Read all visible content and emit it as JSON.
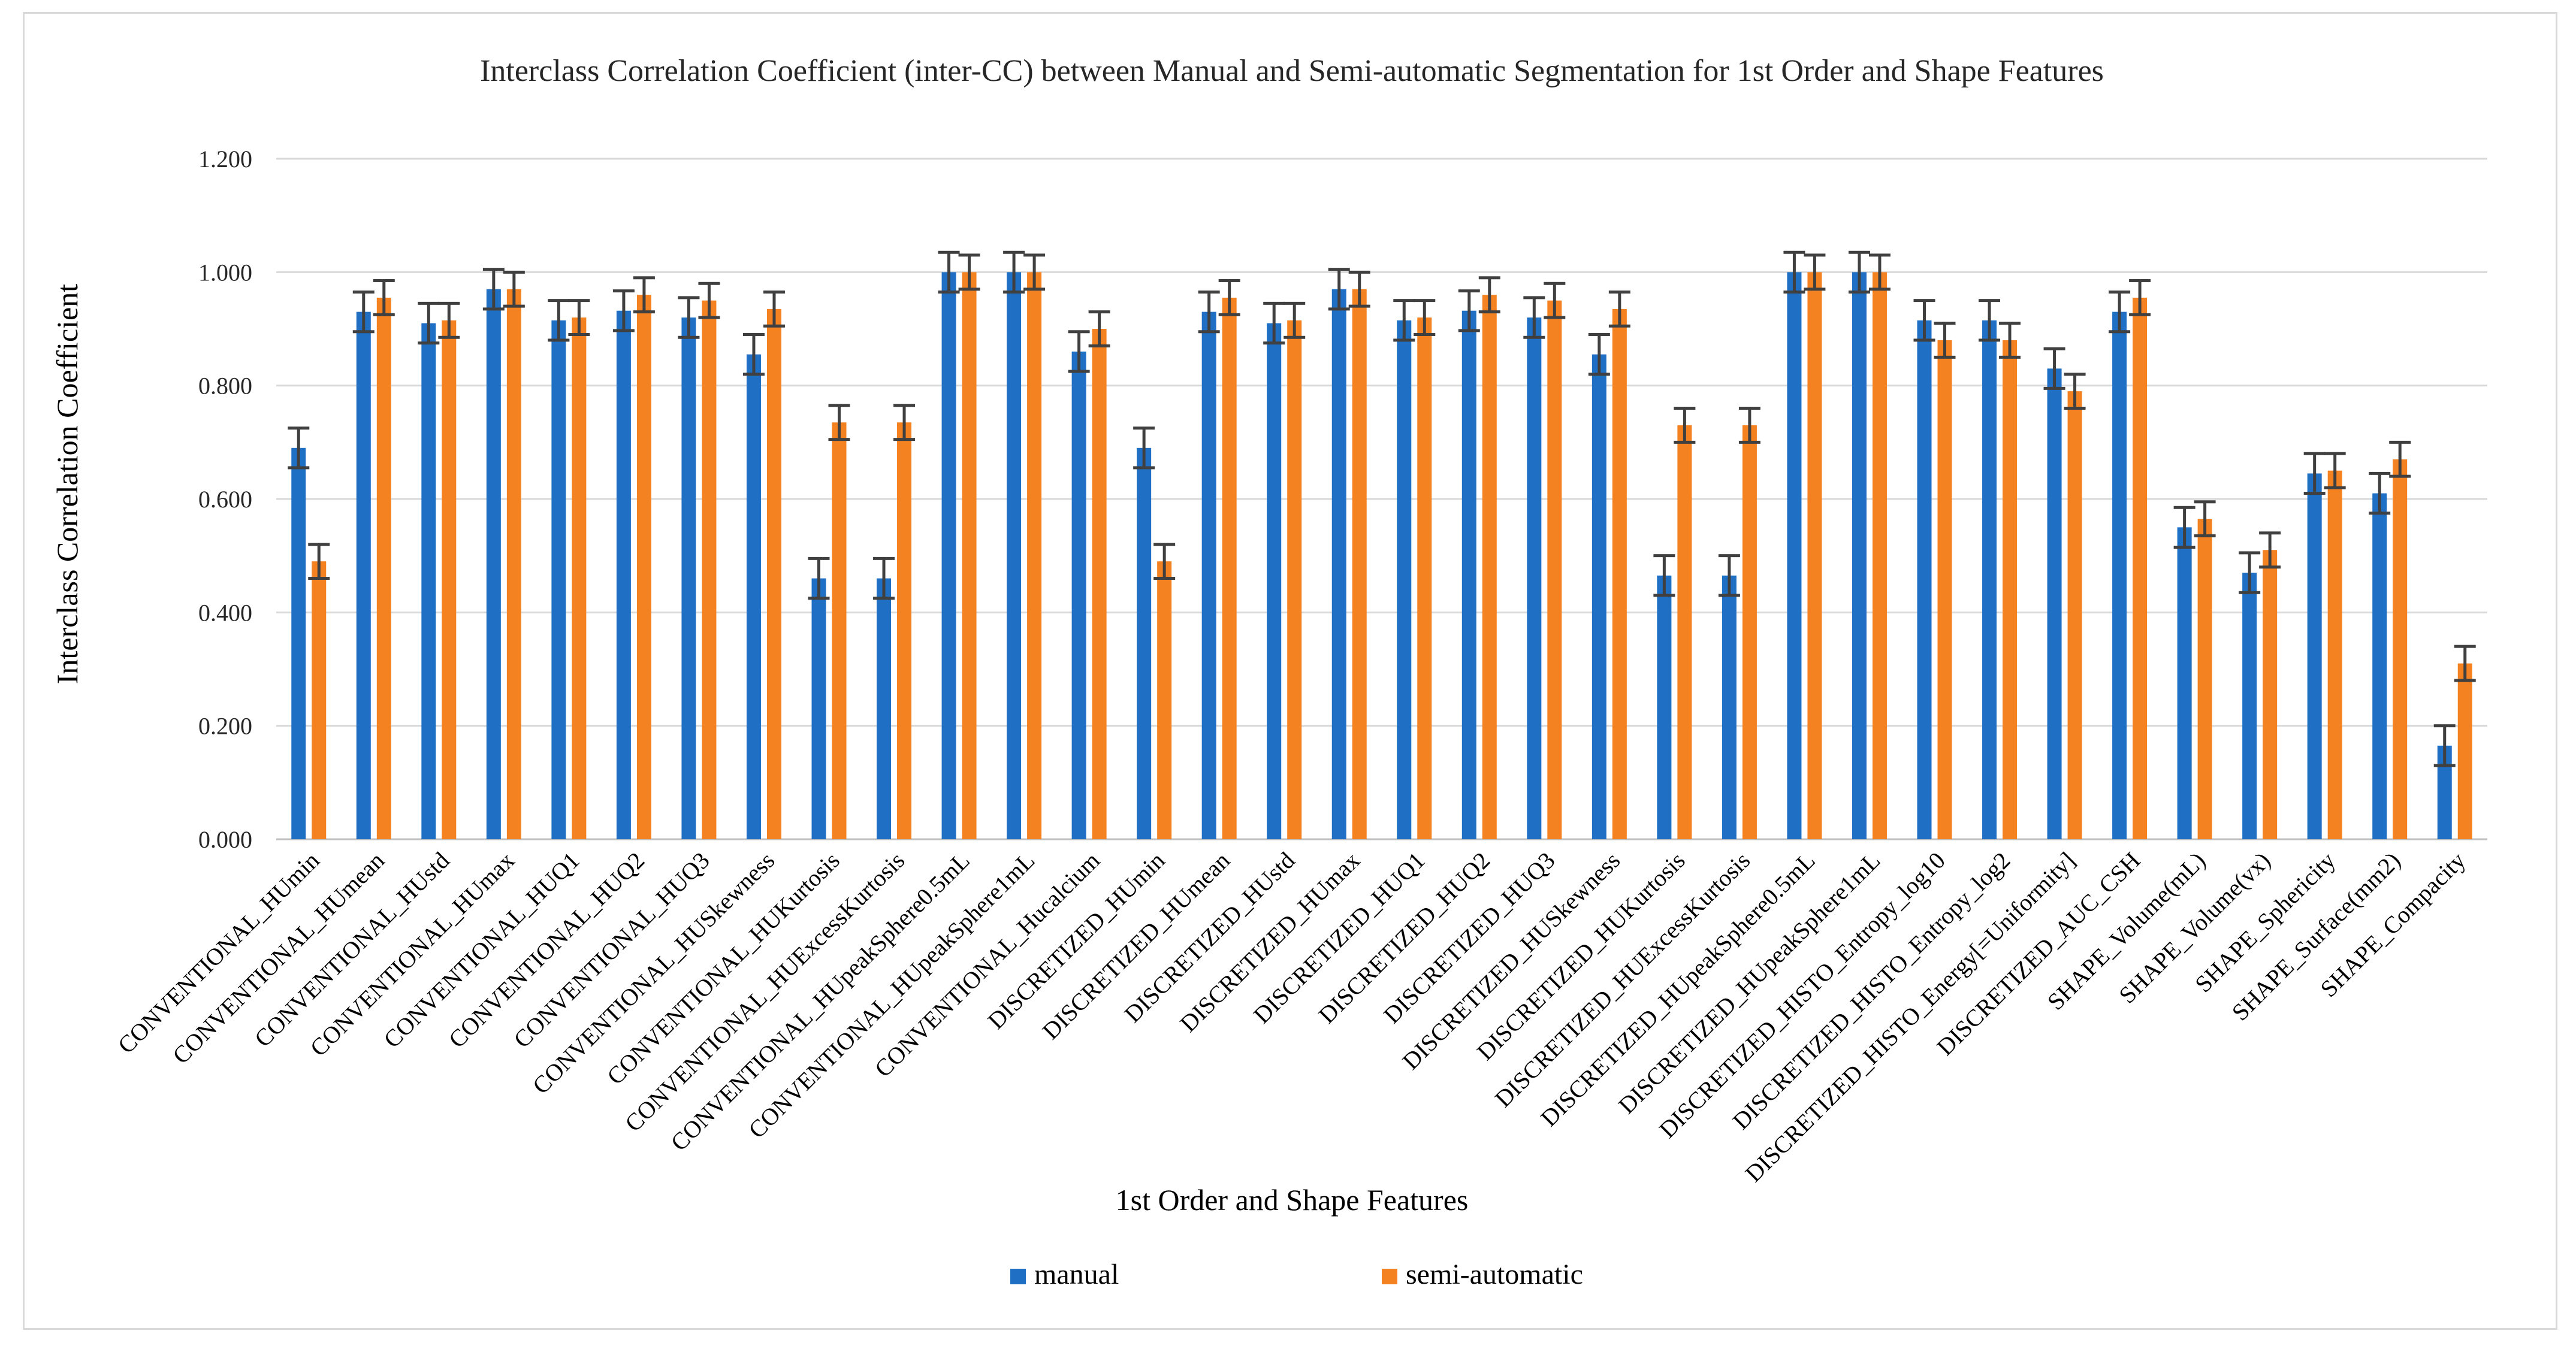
{
  "chart_data": {
    "type": "bar",
    "title": "Interclass Correlation Coefficient (inter-CC) between Manual and Semi-automatic Segmentation for 1st Order and Shape Features",
    "xlabel": "1st Order and Shape Features",
    "ylabel": "Interclass Correlation Coefficient",
    "ylim": [
      0,
      1.2
    ],
    "yticks": [
      "0.000",
      "0.200",
      "0.400",
      "0.600",
      "0.800",
      "1.000",
      "1.200"
    ],
    "ytick_values": [
      0,
      0.2,
      0.4,
      0.6,
      0.8,
      1.0,
      1.2
    ],
    "grid": true,
    "legend_position": "bottom",
    "error_bars": true,
    "categories": [
      "CONVENTIONAL_HUmin",
      "CONVENTIONAL_HUmean",
      "CONVENTIONAL_HUstd",
      "CONVENTIONAL_HUmax",
      "CONVENTIONAL_HUQ1",
      "CONVENTIONAL_HUQ2",
      "CONVENTIONAL_HUQ3",
      "CONVENTIONAL_HUSkewness",
      "CONVENTIONAL_HUKurtosis",
      "CONVENTIONAL_HUExcessKurtosis",
      "CONVENTIONAL_HUpeakSphere0.5mL",
      "CONVENTIONAL_HUpeakSphere1mL",
      "CONVENTIONAL_Hucalcium",
      "DISCRETIZED_HUmin",
      "DISCRETIZED_HUmean",
      "DISCRETIZED_HUstd",
      "DISCRETIZED_HUmax",
      "DISCRETIZED_HUQ1",
      "DISCRETIZED_HUQ2",
      "DISCRETIZED_HUQ3",
      "DISCRETIZED_HUSkewness",
      "DISCRETIZED_HUKurtosis",
      "DISCRETIZED_HUExcessKurtosis",
      "DISCRETIZED_HUpeakSphere0.5mL",
      "DISCRETIZED_HUpeakSphere1mL",
      "DISCRETIZED_HISTO_Entropy_log10",
      "DISCRETIZED_HISTO_Entropy_log2",
      "DISCRETIZED_HISTO_Energy[=Uniformity]",
      "DISCRETIZED_AUC_CSH",
      "SHAPE_Volume(mL)",
      "SHAPE_Volume(vx)",
      "SHAPE_Sphericity",
      "SHAPE_Surface(mm2)",
      "SHAPE_Compacity"
    ],
    "series": [
      {
        "name": "manual",
        "color": "#1f6fc4",
        "values": [
          0.69,
          0.93,
          0.91,
          0.97,
          0.915,
          0.932,
          0.92,
          0.855,
          0.46,
          0.46,
          1.0,
          1.0,
          0.86,
          0.69,
          0.93,
          0.91,
          0.97,
          0.915,
          0.932,
          0.92,
          0.855,
          0.465,
          0.465,
          1.0,
          1.0,
          0.915,
          0.915,
          0.83,
          0.93,
          0.55,
          0.47,
          0.645,
          0.61,
          0.165
        ],
        "errors": [
          0.035,
          0.035,
          0.035,
          0.035,
          0.035,
          0.035,
          0.035,
          0.035,
          0.035,
          0.035,
          0.035,
          0.035,
          0.035,
          0.035,
          0.035,
          0.035,
          0.035,
          0.035,
          0.035,
          0.035,
          0.035,
          0.035,
          0.035,
          0.035,
          0.035,
          0.035,
          0.035,
          0.035,
          0.035,
          0.035,
          0.035,
          0.035,
          0.035,
          0.035
        ]
      },
      {
        "name": "semi-automatic",
        "color": "#f58220",
        "values": [
          0.49,
          0.955,
          0.915,
          0.97,
          0.92,
          0.96,
          0.95,
          0.935,
          0.735,
          0.735,
          1.0,
          1.0,
          0.9,
          0.49,
          0.955,
          0.915,
          0.97,
          0.92,
          0.96,
          0.95,
          0.935,
          0.73,
          0.73,
          1.0,
          1.0,
          0.88,
          0.88,
          0.79,
          0.955,
          0.565,
          0.51,
          0.65,
          0.67,
          0.31
        ],
        "errors": [
          0.03,
          0.03,
          0.03,
          0.03,
          0.03,
          0.03,
          0.03,
          0.03,
          0.03,
          0.03,
          0.03,
          0.03,
          0.03,
          0.03,
          0.03,
          0.03,
          0.03,
          0.03,
          0.03,
          0.03,
          0.03,
          0.03,
          0.03,
          0.03,
          0.03,
          0.03,
          0.03,
          0.03,
          0.03,
          0.03,
          0.03,
          0.03,
          0.03,
          0.03
        ]
      }
    ]
  }
}
